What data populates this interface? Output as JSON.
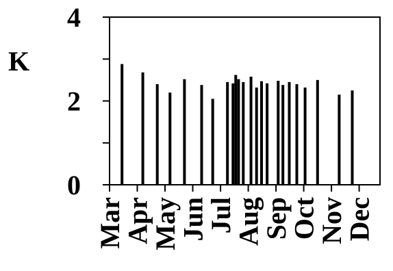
{
  "chart_data": {
    "type": "bar",
    "title": "",
    "xlabel": "",
    "ylabel": "K",
    "ylim": [
      0,
      4
    ],
    "yticks": [
      "0",
      "2",
      "4"
    ],
    "yticks_minor": [
      1,
      3
    ],
    "xlim": [
      1,
      10.75
    ],
    "xticks": [
      {
        "value": 1,
        "label": "Mar"
      },
      {
        "value": 2,
        "label": "Apr"
      },
      {
        "value": 3,
        "label": "May"
      },
      {
        "value": 4,
        "label": "Jun"
      },
      {
        "value": 5,
        "label": "Jul"
      },
      {
        "value": 6,
        "label": "Aug"
      },
      {
        "value": 7,
        "label": "Sep"
      },
      {
        "value": 8,
        "label": "Oct"
      },
      {
        "value": 9,
        "label": "Nov"
      },
      {
        "value": 10,
        "label": "Dec"
      }
    ],
    "grid": false,
    "legend": "none",
    "bar_color": "#000000",
    "series": [
      {
        "points": [
          {
            "x": 1.45,
            "y": 2.88
          },
          {
            "x": 2.2,
            "y": 2.68
          },
          {
            "x": 2.72,
            "y": 2.4
          },
          {
            "x": 3.18,
            "y": 2.2
          },
          {
            "x": 3.7,
            "y": 2.52
          },
          {
            "x": 4.32,
            "y": 2.38
          },
          {
            "x": 4.72,
            "y": 2.05
          },
          {
            "x": 5.25,
            "y": 2.45
          },
          {
            "x": 5.45,
            "y": 2.42
          },
          {
            "x": 5.55,
            "y": 2.62
          },
          {
            "x": 5.65,
            "y": 2.52
          },
          {
            "x": 5.82,
            "y": 2.45
          },
          {
            "x": 6.1,
            "y": 2.58
          },
          {
            "x": 6.3,
            "y": 2.32
          },
          {
            "x": 6.48,
            "y": 2.47
          },
          {
            "x": 6.68,
            "y": 2.42
          },
          {
            "x": 7.08,
            "y": 2.48
          },
          {
            "x": 7.25,
            "y": 2.38
          },
          {
            "x": 7.48,
            "y": 2.45
          },
          {
            "x": 7.75,
            "y": 2.4
          },
          {
            "x": 8.05,
            "y": 2.32
          },
          {
            "x": 8.5,
            "y": 2.5
          },
          {
            "x": 9.28,
            "y": 2.15
          },
          {
            "x": 9.75,
            "y": 2.25
          }
        ]
      }
    ]
  }
}
